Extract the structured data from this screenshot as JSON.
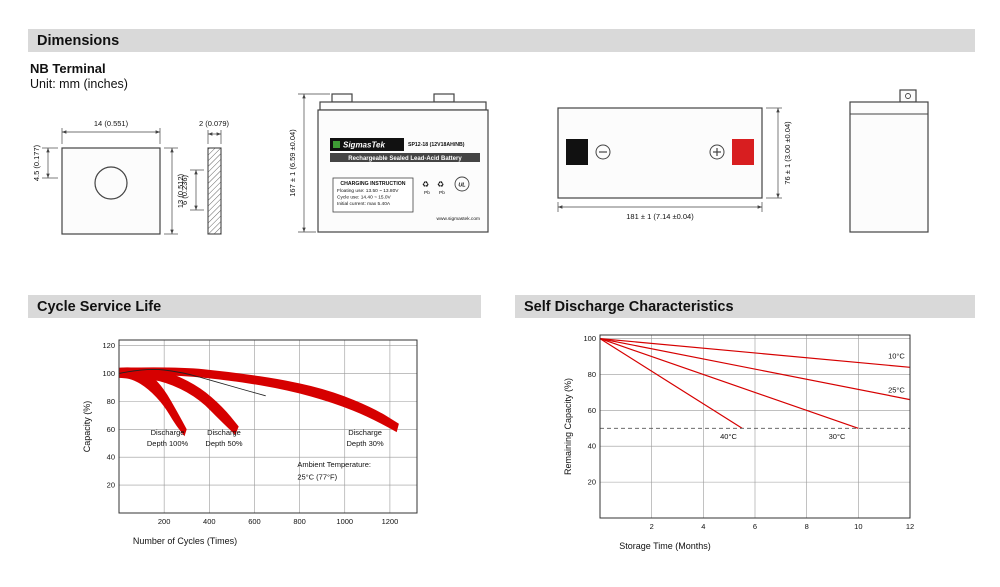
{
  "colors": {
    "section_header_bg": "#d9d9d9",
    "band_red": "#d60000",
    "terminal_red": "#d81e20",
    "brand_green": "#3e9c35"
  },
  "headers": {
    "dimensions": "Dimensions",
    "cycle_life": "Cycle Service Life",
    "self_discharge": "Self Discharge Characteristics"
  },
  "dimensions_section": {
    "terminal_title": "NB Terminal",
    "unit_note": "Unit: mm (inches)",
    "terminal_front": {
      "width": "14 (0.551)",
      "offset": "4.5 (0.177)",
      "height": "13 (0.512)"
    },
    "terminal_side": {
      "thickness": "2 (0.079)",
      "height": "6 (0.236)"
    },
    "battery_front": {
      "height_dim": "167 ± 1 (6.59 ±0.04)",
      "brand": "SigmasTek",
      "model": "SP12-18 (12V18AH/NB)",
      "type_line": "Rechargeable Sealed Lead-Acid Battery",
      "charging_title": "CHARGING INSTRUCTION",
      "charging_line1": "Floating use: 13.50 ~ 13.80V",
      "charging_line2": "Cycle use: 14.40 ~ 15.0V",
      "charging_line3": "Initial current: max 5.40A",
      "website": "www.sigmastek.com"
    },
    "battery_top": {
      "width_dim": "181 ± 1 (7.14 ±0.04)",
      "depth_dim": "76 ± 1 (3.00 ±0.04)"
    },
    "icons": {
      "recycle_glyph": "♻",
      "pb": "Pb",
      "ul": "UL"
    }
  },
  "chart_data": [
    {
      "name": "cycle-service-life",
      "type": "area",
      "title": "Cycle Service Life",
      "xlabel": "Number of Cycles (Times)",
      "ylabel": "Capacity (%)",
      "xlim": [
        0,
        1320
      ],
      "ylim": [
        0,
        124
      ],
      "xticks": [
        200,
        400,
        600,
        800,
        1000,
        1200
      ],
      "yticks": [
        20,
        40,
        60,
        80,
        100,
        120
      ],
      "grid": true,
      "series": [
        {
          "name": "Discharge Depth 100%",
          "kind": "band",
          "color": "#d60000",
          "upper": [
            [
              0,
              104
            ],
            [
              60,
              105
            ],
            [
              130,
              101
            ],
            [
              200,
              89
            ],
            [
              260,
              72
            ],
            [
              300,
              60
            ]
          ],
          "lower": [
            [
              0,
              97
            ],
            [
              60,
              96
            ],
            [
              130,
              89
            ],
            [
              200,
              77
            ],
            [
              250,
              63
            ],
            [
              290,
              55
            ]
          ]
        },
        {
          "name": "Discharge Depth 50%",
          "kind": "band",
          "color": "#d60000",
          "upper": [
            [
              0,
              104
            ],
            [
              120,
              105
            ],
            [
              240,
              100
            ],
            [
              360,
              90
            ],
            [
              460,
              76
            ],
            [
              530,
              62
            ]
          ],
          "lower": [
            [
              0,
              97
            ],
            [
              120,
              97
            ],
            [
              240,
              92
            ],
            [
              360,
              81
            ],
            [
              450,
              66
            ],
            [
              515,
              56
            ]
          ]
        },
        {
          "name": "Discharge Depth 30%",
          "kind": "band",
          "color": "#d60000",
          "upper": [
            [
              0,
              104
            ],
            [
              250,
              105
            ],
            [
              500,
              101
            ],
            [
              750,
              95
            ],
            [
              950,
              87
            ],
            [
              1130,
              75
            ],
            [
              1240,
              64
            ]
          ],
          "lower": [
            [
              0,
              98
            ],
            [
              250,
              99
            ],
            [
              500,
              95
            ],
            [
              750,
              88
            ],
            [
              950,
              79
            ],
            [
              1120,
              68
            ],
            [
              1230,
              58
            ]
          ]
        },
        {
          "name": "reference-curve",
          "kind": "line",
          "color": "#222222",
          "width": 0.9,
          "points": [
            [
              0,
              100
            ],
            [
              120,
              104
            ],
            [
              280,
              101
            ],
            [
              430,
              94
            ],
            [
              560,
              88
            ],
            [
              650,
              84
            ]
          ]
        }
      ],
      "labels": [
        {
          "x": 215,
          "y": 56,
          "text": "Discharge",
          "align": "middle"
        },
        {
          "x": 215,
          "y": 48,
          "text": "Depth 100%",
          "align": "middle"
        },
        {
          "x": 465,
          "y": 56,
          "text": "Discharge",
          "align": "middle"
        },
        {
          "x": 465,
          "y": 48,
          "text": "Depth 50%",
          "align": "middle"
        },
        {
          "x": 1090,
          "y": 56,
          "text": "Discharge",
          "align": "middle"
        },
        {
          "x": 1090,
          "y": 48,
          "text": "Depth 30%",
          "align": "middle"
        },
        {
          "x": 790,
          "y": 33,
          "text": "Ambient Temperature:",
          "align": "start"
        },
        {
          "x": 790,
          "y": 24,
          "text": "25°C (77°F)",
          "align": "start"
        }
      ]
    },
    {
      "name": "self-discharge-characteristics",
      "type": "line",
      "title": "Self Discharge Characteristics",
      "xlabel": "Storage Time (Months)",
      "ylabel": "Remaining Capacity (%)",
      "xlim": [
        0,
        12
      ],
      "ylim": [
        0,
        102
      ],
      "xticks": [
        2,
        4,
        6,
        8,
        10,
        12
      ],
      "yticks": [
        20,
        40,
        60,
        80,
        100
      ],
      "grid": true,
      "series": [
        {
          "name": "10°C",
          "kind": "line",
          "color": "#d60000",
          "points": [
            [
              0,
              100
            ],
            [
              12,
              84
            ]
          ]
        },
        {
          "name": "25°C",
          "kind": "line",
          "color": "#d60000",
          "points": [
            [
              0,
              100
            ],
            [
              12,
              66
            ]
          ]
        },
        {
          "name": "30°C",
          "kind": "line",
          "color": "#d60000",
          "points": [
            [
              0,
              100
            ],
            [
              10,
              50
            ]
          ]
        },
        {
          "name": "40°C",
          "kind": "line",
          "color": "#d60000",
          "points": [
            [
              0,
              100
            ],
            [
              5.5,
              50
            ]
          ]
        },
        {
          "name": "50-percent-reference",
          "kind": "line",
          "color": "#555555",
          "dash": "4 3",
          "width": 0.9,
          "points": [
            [
              0,
              50
            ],
            [
              12,
              50
            ]
          ]
        }
      ],
      "labels": [
        {
          "x": 11.8,
          "y": 89,
          "text": "10°C",
          "align": "end"
        },
        {
          "x": 11.8,
          "y": 70,
          "text": "25°C",
          "align": "end"
        },
        {
          "x": 5.3,
          "y": 44,
          "text": "40°C",
          "align": "end"
        },
        {
          "x": 9.5,
          "y": 44,
          "text": "30°C",
          "align": "end"
        }
      ]
    }
  ]
}
